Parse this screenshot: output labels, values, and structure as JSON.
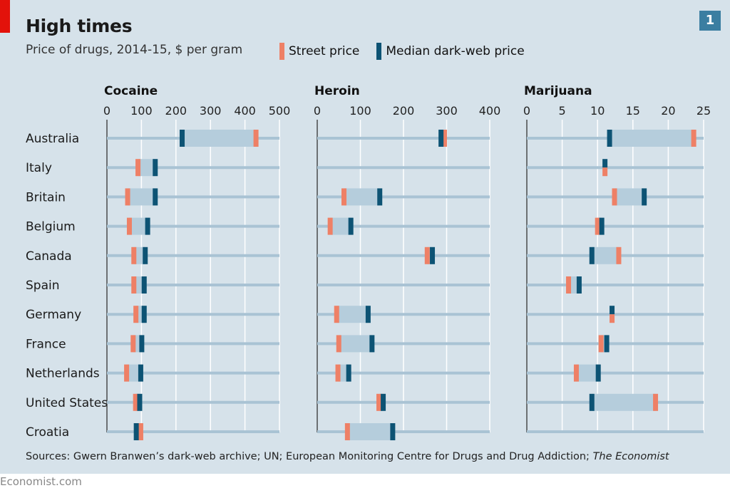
{
  "title": "High times",
  "subtitle": "Price of drugs, 2014-15, $ per gram",
  "badge": "1",
  "legend": {
    "street": "Street price",
    "darkweb": "Median dark-web price"
  },
  "colors": {
    "street": "#ee8066",
    "darkweb": "#0d5374",
    "range": "#b5cddc",
    "row_line": "#a9c3d4",
    "background": "#d6e2ea",
    "grid": "#ffffff"
  },
  "source": {
    "text": "Sources: Gwern Branwen’s dark-web archive; UN; European Monitoring Centre for Drugs and Drug Addiction; ",
    "italic": "The Economist"
  },
  "footer": "Economist.com",
  "chart_data": {
    "type": "range-dot",
    "countries": [
      "Australia",
      "Italy",
      "Britain",
      "Belgium",
      "Canada",
      "Spain",
      "Germany",
      "France",
      "Netherlands",
      "United States",
      "Croatia"
    ],
    "panels": [
      {
        "name": "Cocaine",
        "xlim": [
          0,
          500
        ],
        "ticks": [
          0,
          100,
          200,
          300,
          400,
          500
        ],
        "street": [
          432,
          90,
          60,
          65,
          78,
          78,
          84,
          76,
          57,
          83,
          98
        ],
        "darkweb": [
          218,
          140,
          140,
          118,
          111,
          108,
          108,
          101,
          98,
          95,
          85
        ]
      },
      {
        "name": "Heroin",
        "xlim": [
          0,
          400
        ],
        "ticks": [
          0,
          100,
          200,
          300,
          400
        ],
        "street": [
          295,
          null,
          62,
          30,
          255,
          null,
          45,
          50,
          48,
          143,
          70
        ],
        "darkweb": [
          287,
          null,
          145,
          78,
          267,
          null,
          118,
          127,
          73,
          153,
          175
        ]
      },
      {
        "name": "Marijuana",
        "xlim": [
          0,
          25
        ],
        "ticks": [
          0,
          5,
          10,
          15,
          20,
          25
        ],
        "street": [
          23.6,
          11,
          12.4,
          10,
          13,
          5.9,
          12,
          10.5,
          7,
          18.2,
          null
        ],
        "darkweb": [
          11.7,
          11,
          16.6,
          10.6,
          9.2,
          7.4,
          12,
          11.3,
          10.1,
          9.2,
          null
        ]
      }
    ]
  }
}
